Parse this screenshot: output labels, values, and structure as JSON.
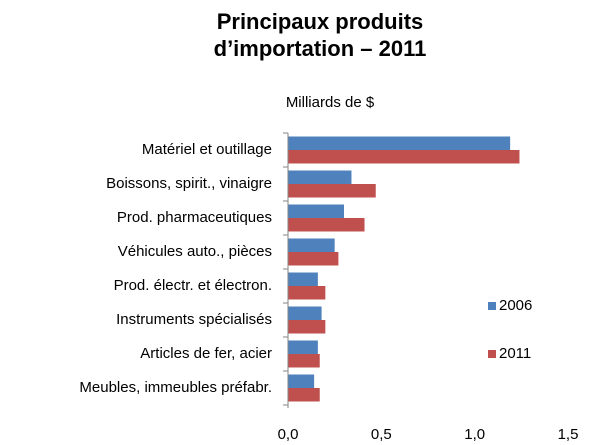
{
  "chart_data": {
    "type": "bar",
    "orientation": "horizontal",
    "title": "Principaux produits d’importation – 2011",
    "subtitle": "Milliards de $",
    "categories": [
      "Matériel et outillage",
      "Boissons, spirit., vinaigre",
      "Prod. pharmaceutiques",
      "Véhicules auto., pièces",
      "Prod. électr. et électron.",
      "Instruments spécialisés",
      "Articles de fer, acier",
      "Meubles, immeubles préfabr."
    ],
    "series": [
      {
        "name": "2006",
        "color": "#4f81bd",
        "values": [
          1.19,
          0.34,
          0.3,
          0.25,
          0.16,
          0.18,
          0.16,
          0.14
        ]
      },
      {
        "name": "2011",
        "color": "#c0504d",
        "values": [
          1.24,
          0.47,
          0.41,
          0.27,
          0.2,
          0.2,
          0.17,
          0.17
        ]
      }
    ],
    "xlim": [
      0,
      1.5
    ],
    "xticks": [
      {
        "value": 0,
        "label": "0,0"
      },
      {
        "value": 0.5,
        "label": "0,5"
      },
      {
        "value": 1,
        "label": "1,0"
      },
      {
        "value": 1.5,
        "label": "1,5"
      }
    ],
    "grid": false,
    "legend": "right"
  }
}
